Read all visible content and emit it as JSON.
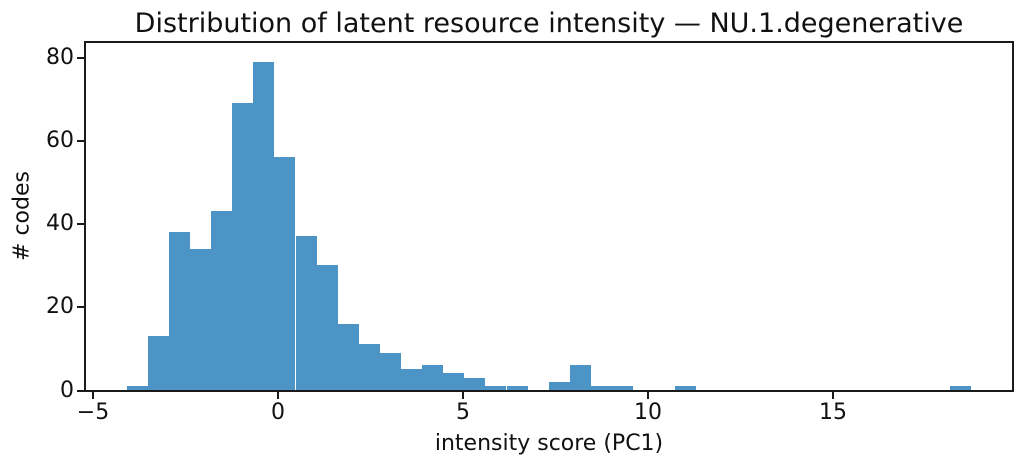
{
  "chart_data": {
    "type": "bar",
    "subtype": "histogram",
    "title": "Distribution of latent resource intensity — NU.1.degenerative",
    "xlabel": "intensity score (PC1)",
    "ylabel": "# codes",
    "bin_start": -4.09,
    "bin_width": 0.5703,
    "counts": [
      1,
      13,
      38,
      34,
      43,
      69,
      79,
      56,
      37,
      30,
      16,
      11,
      9,
      5,
      6,
      4,
      3,
      1,
      1,
      0,
      2,
      6,
      1,
      1,
      0,
      0,
      1,
      0,
      0,
      0,
      0,
      0,
      0,
      0,
      0,
      0,
      0,
      0,
      0,
      1
    ],
    "xlim": [
      -5.23,
      19.86
    ],
    "ylim": [
      0,
      84.1
    ],
    "x_ticks": [
      {
        "value": -5,
        "label": "−5"
      },
      {
        "value": 0,
        "label": "0"
      },
      {
        "value": 5,
        "label": "5"
      },
      {
        "value": 10,
        "label": "10"
      },
      {
        "value": 15,
        "label": "15"
      }
    ],
    "y_ticks": [
      {
        "value": 0,
        "label": "0"
      },
      {
        "value": 20,
        "label": "20"
      },
      {
        "value": 40,
        "label": "40"
      },
      {
        "value": 60,
        "label": "60"
      },
      {
        "value": 80,
        "label": "80"
      }
    ],
    "bar_color": "#4d94c6",
    "axis_color": "#1a1a1a",
    "grid": false,
    "legend": null
  }
}
